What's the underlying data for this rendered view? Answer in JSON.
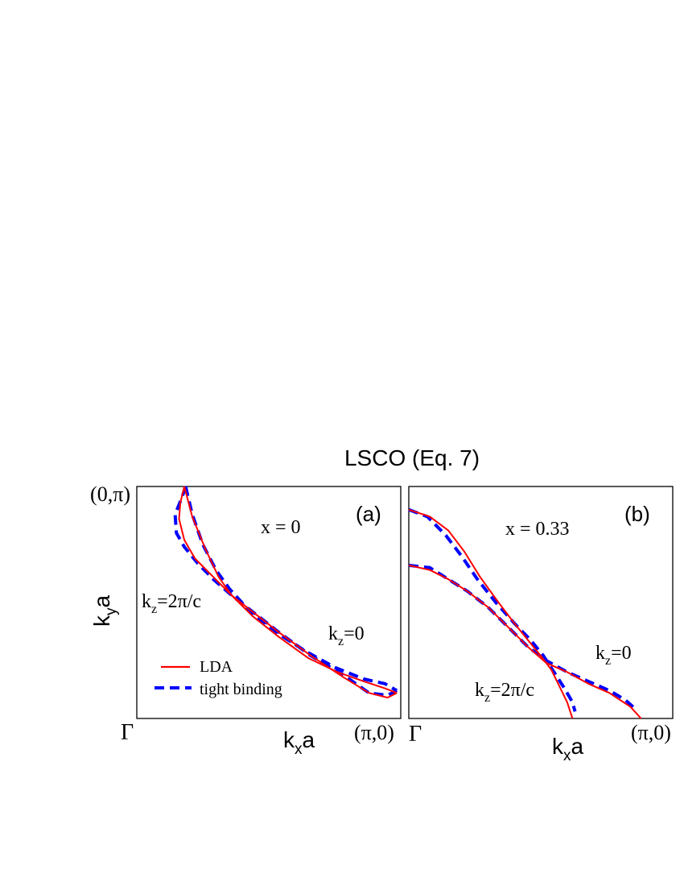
{
  "title": "LSCO (Eq. 7)",
  "colors": {
    "lda": "#ff0000",
    "tight_binding": "#0000ff",
    "frame": "#000000"
  },
  "legend": {
    "lda": "LDA",
    "tight_binding": "tight binding"
  },
  "axes": {
    "ylabel_main": "k",
    "ylabel_sub": "y",
    "ylabel_tail": "a",
    "xlabel_main": "k",
    "xlabel_sub": "x",
    "xlabel_tail": "a",
    "gamma": "Γ",
    "corner_x": "(π,0)",
    "corner_y": "(0,π)"
  },
  "chart_data": [
    {
      "type": "line",
      "panel": "(a)",
      "doping": "x = 0",
      "xlim": [
        0,
        1
      ],
      "ylim": [
        0,
        1
      ],
      "xlabel": "kxa",
      "ylabel": "kya",
      "kz_labels": {
        "kz0_main": "k",
        "kz0_sub": "z",
        "kz0_tail": "=0",
        "kz2_main": "k",
        "kz2_sub": "z",
        "kz2_tail": "=2π/c"
      },
      "series": [
        {
          "name": "LDA",
          "curve": "kz=0",
          "x": [
            0.18,
            0.165,
            0.16,
            0.18,
            0.22,
            0.29,
            0.36,
            0.45,
            0.54,
            0.66,
            0.78,
            0.88,
            0.95,
            0.985
          ],
          "y": [
            1.0,
            0.93,
            0.86,
            0.77,
            0.69,
            0.61,
            0.53,
            0.45,
            0.37,
            0.27,
            0.18,
            0.11,
            0.09,
            0.11
          ]
        },
        {
          "name": "LDA",
          "curve": "kz=2π/c",
          "x": [
            0.18,
            0.21,
            0.26,
            0.31,
            0.36,
            0.44,
            0.54,
            0.65,
            0.76,
            0.86,
            0.94,
            0.985
          ],
          "y": [
            1.0,
            0.87,
            0.73,
            0.61,
            0.53,
            0.44,
            0.35,
            0.26,
            0.2,
            0.16,
            0.13,
            0.11
          ]
        },
        {
          "name": "tight binding",
          "curve": "kz=0",
          "x": [
            0.185,
            0.17,
            0.145,
            0.15,
            0.18,
            0.23,
            0.29,
            0.36,
            0.45,
            0.54,
            0.66,
            0.78,
            0.88,
            0.95,
            0.985
          ],
          "y": [
            1.0,
            0.95,
            0.88,
            0.8,
            0.74,
            0.67,
            0.6,
            0.53,
            0.45,
            0.37,
            0.27,
            0.19,
            0.11,
            0.1,
            0.12
          ]
        },
        {
          "name": "tight binding",
          "curve": "kz=2π/c",
          "x": [
            0.185,
            0.21,
            0.25,
            0.3,
            0.35,
            0.43,
            0.53,
            0.64,
            0.75,
            0.86,
            0.94,
            0.985
          ],
          "y": [
            1.0,
            0.88,
            0.75,
            0.64,
            0.56,
            0.46,
            0.37,
            0.29,
            0.22,
            0.17,
            0.15,
            0.12
          ]
        }
      ]
    },
    {
      "type": "line",
      "panel": "(b)",
      "doping": "x = 0.33",
      "xlim": [
        0,
        1
      ],
      "ylim": [
        0,
        1
      ],
      "xlabel": "kxa",
      "ylabel": "kya",
      "kz_labels": {
        "kz0_main": "k",
        "kz0_sub": "z",
        "kz0_tail": "=0",
        "kz2_main": "k",
        "kz2_sub": "z",
        "kz2_tail": "=2π/c"
      },
      "series": [
        {
          "name": "LDA",
          "curve": "kz=0",
          "x": [
            0.0,
            0.08,
            0.15,
            0.22,
            0.3,
            0.38,
            0.45,
            0.52,
            0.6,
            0.68,
            0.76,
            0.84,
            0.88
          ],
          "y": [
            0.66,
            0.64,
            0.6,
            0.55,
            0.48,
            0.39,
            0.31,
            0.24,
            0.2,
            0.15,
            0.11,
            0.05,
            0.0
          ]
        },
        {
          "name": "LDA",
          "curve": "kz=2π/c",
          "x": [
            0.0,
            0.08,
            0.15,
            0.21,
            0.27,
            0.34,
            0.4,
            0.45,
            0.5,
            0.54,
            0.57,
            0.6,
            0.62
          ],
          "y": [
            0.9,
            0.87,
            0.81,
            0.72,
            0.61,
            0.5,
            0.41,
            0.34,
            0.27,
            0.21,
            0.14,
            0.07,
            0.0
          ]
        },
        {
          "name": "tight binding",
          "curve": "kz=0",
          "x": [
            0.0,
            0.08,
            0.15,
            0.22,
            0.3,
            0.38,
            0.45,
            0.52,
            0.6,
            0.68,
            0.76,
            0.82,
            0.86
          ],
          "y": [
            0.66,
            0.65,
            0.6,
            0.55,
            0.48,
            0.39,
            0.31,
            0.25,
            0.2,
            0.16,
            0.12,
            0.08,
            0.04
          ]
        },
        {
          "name": "tight binding",
          "curve": "kz=2π/c",
          "x": [
            0.0,
            0.07,
            0.14,
            0.2,
            0.26,
            0.33,
            0.4,
            0.46,
            0.51,
            0.55,
            0.59,
            0.62,
            0.63
          ],
          "y": [
            0.9,
            0.87,
            0.79,
            0.7,
            0.6,
            0.5,
            0.41,
            0.34,
            0.27,
            0.2,
            0.13,
            0.07,
            0.03
          ]
        }
      ]
    }
  ]
}
